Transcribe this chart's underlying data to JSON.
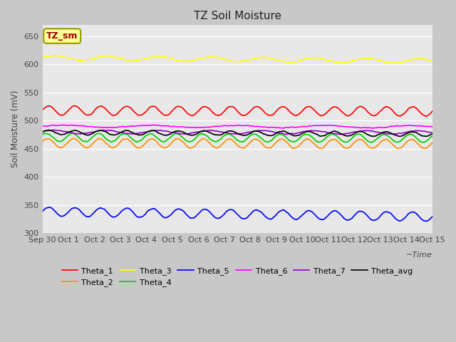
{
  "title": "TZ Soil Moisture",
  "ylabel": "Soil Moisture (mV)",
  "xlabel": "~Time",
  "ylim": [
    300,
    670
  ],
  "yticks": [
    300,
    350,
    400,
    450,
    500,
    550,
    600,
    650
  ],
  "n_points": 1440,
  "days": 15,
  "series": [
    {
      "name": "Theta_1",
      "color": "#ff0000",
      "base": 518,
      "amp": 8,
      "freq": 1.0,
      "trend": -0.005,
      "phase": 0.0
    },
    {
      "name": "Theta_2",
      "color": "#ff8c00",
      "base": 460,
      "amp": 8,
      "freq": 1.0,
      "trend": -0.005,
      "phase": 0.3
    },
    {
      "name": "Theta_3",
      "color": "#ffff00",
      "base": 612,
      "amp": 4,
      "freq": 0.5,
      "trend": -0.02,
      "phase": 0.0
    },
    {
      "name": "Theta_4",
      "color": "#00cc00",
      "base": 470,
      "amp": 7,
      "freq": 1.0,
      "trend": -0.005,
      "phase": 0.6
    },
    {
      "name": "Theta_5",
      "color": "#0000ff",
      "base": 338,
      "amp": 8,
      "freq": 1.0,
      "trend": -0.03,
      "phase": 0.0
    },
    {
      "name": "Theta_6",
      "color": "#ff00ff",
      "base": 490,
      "amp": 2,
      "freq": 0.3,
      "trend": -0.003,
      "phase": 0.0
    },
    {
      "name": "Theta_7",
      "color": "#9900cc",
      "base": 480,
      "amp": 3,
      "freq": 0.5,
      "trend": -0.004,
      "phase": 0.2
    },
    {
      "name": "Theta_avg",
      "color": "#000000",
      "base": 479,
      "amp": 4,
      "freq": 1.0,
      "trend": -0.01,
      "phase": 0.1
    }
  ],
  "tick_labels": [
    "Sep 30",
    "Oct 1",
    "Oct 2",
    "Oct 3",
    "Oct 4",
    "Oct 5",
    "Oct 6",
    "Oct 7",
    "Oct 8",
    "Oct 9",
    "Oct 10",
    "Oct 11",
    "Oct 12",
    "Oct 13",
    "Oct 14",
    "Oct 15"
  ],
  "annotation_text": "TZ_sm",
  "annotation_color": "#990000",
  "annotation_bg": "#ffff99",
  "annotation_edge": "#999900",
  "fig_bg": "#c8c8c8",
  "plot_bg": "#e8e8e8",
  "grid_color": "#ffffff",
  "linewidth": 1.2
}
